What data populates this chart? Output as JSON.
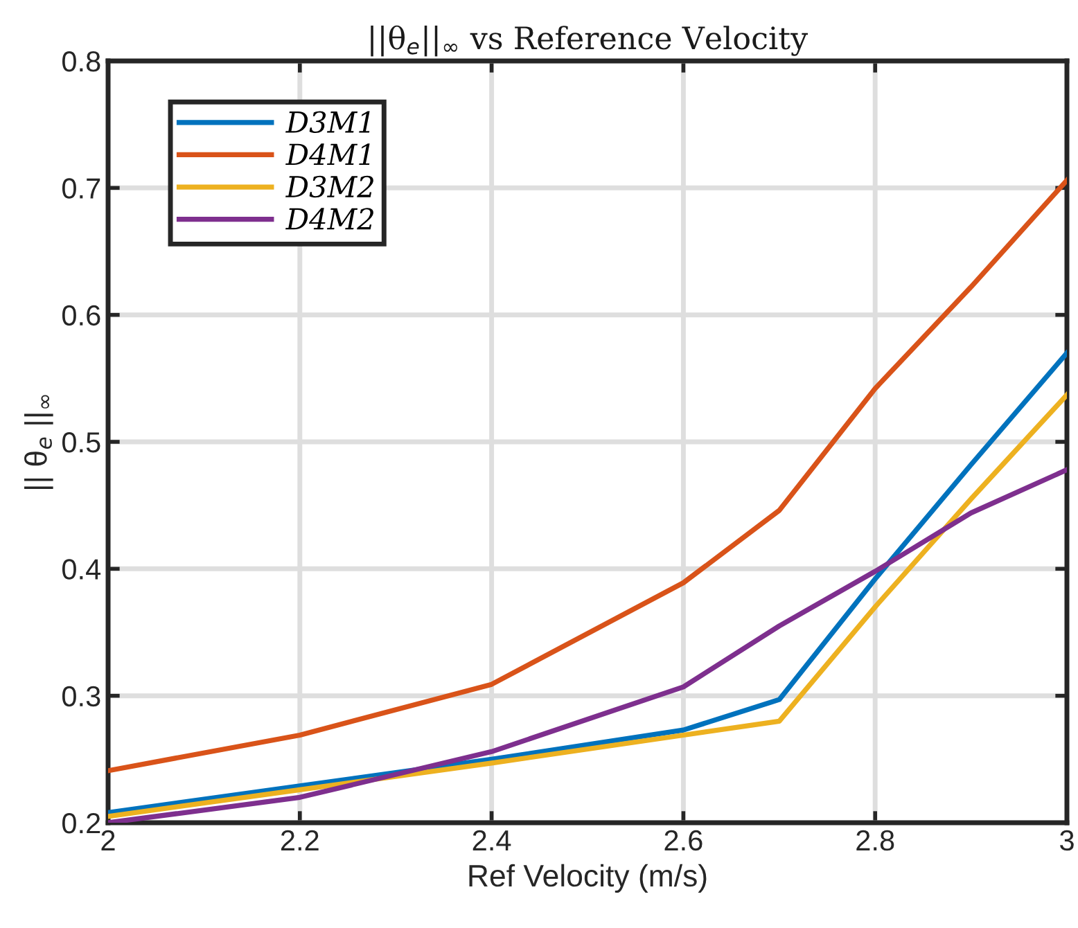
{
  "chart_data": {
    "type": "line",
    "title": "||θ$_{e}$||$_{∞}$ vs Reference Velocity",
    "xlabel": "Ref Velocity (m/s)",
    "ylabel": "|| θ$_{e}$ ||$_{∞}$",
    "x": [
      2.0,
      2.2,
      2.4,
      2.6,
      2.7,
      2.8,
      2.9,
      3.0
    ],
    "series": [
      {
        "name": "D3M1",
        "color": "#0072bd",
        "values": [
          0.208,
          0.229,
          0.25,
          0.273,
          0.297,
          0.392,
          0.482,
          0.57
        ]
      },
      {
        "name": "D4M1",
        "color": "#d95319",
        "values": [
          0.241,
          0.269,
          0.309,
          0.389,
          0.446,
          0.542,
          0.622,
          0.706
        ]
      },
      {
        "name": "D3M2",
        "color": "#edb120",
        "values": [
          0.205,
          0.226,
          0.247,
          0.269,
          0.28,
          0.37,
          0.455,
          0.537
        ]
      },
      {
        "name": "D4M2",
        "color": "#7e2f8e",
        "values": [
          0.2,
          0.22,
          0.256,
          0.307,
          0.355,
          0.398,
          0.444,
          0.478
        ]
      }
    ],
    "xlim": [
      2,
      3
    ],
    "ylim": [
      0.2,
      0.8
    ],
    "xticks": [
      2,
      2.2,
      2.4,
      2.6,
      2.8,
      3
    ],
    "yticks": [
      0.2,
      0.3,
      0.4,
      0.5,
      0.6,
      0.7,
      0.8
    ],
    "grid": true,
    "legend": "top left",
    "marker": "none",
    "line_style": "solid"
  }
}
